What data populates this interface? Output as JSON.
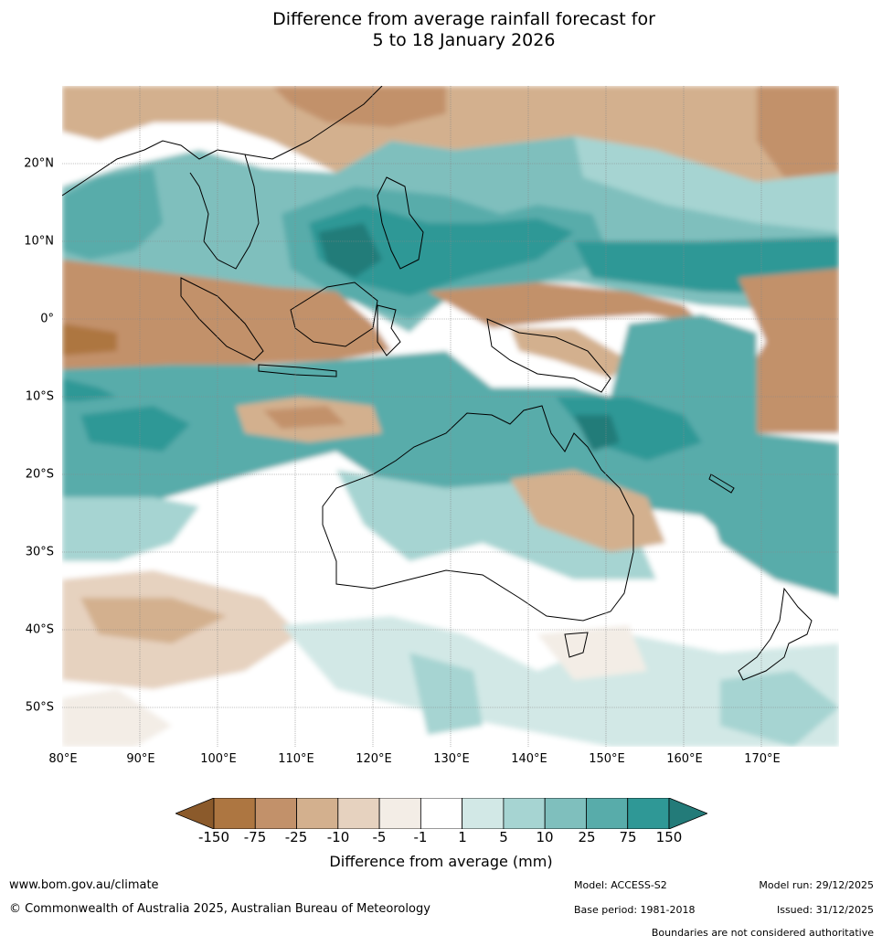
{
  "title": {
    "line1": "Difference from average rainfall forecast for",
    "line2": "5 to 18 January 2026"
  },
  "map": {
    "lat_labels": [
      "20°N",
      "10°N",
      "0°",
      "10°S",
      "20°S",
      "30°S",
      "40°S",
      "50°S"
    ],
    "lon_labels": [
      "80°E",
      "90°E",
      "100°E",
      "110°E",
      "120°E",
      "130°E",
      "140°E",
      "150°E",
      "160°E",
      "170°E"
    ],
    "lon_range": [
      80,
      180
    ],
    "lat_range": [
      -55,
      30
    ]
  },
  "legend": {
    "title": "Difference from average (mm)",
    "tick_labels": [
      "-150",
      "-75",
      "-25",
      "-10",
      "-5",
      "-1",
      "1",
      "5",
      "10",
      "25",
      "75",
      "150"
    ],
    "colors": [
      "#8b5a2b",
      "#ad7641",
      "#c2916a",
      "#d3b08e",
      "#e6d2bf",
      "#f3ede6",
      "#ffffff",
      "#d2e8e6",
      "#a6d4d2",
      "#7fbfbd",
      "#58acaa",
      "#2f9896",
      "#237b79"
    ]
  },
  "footer": {
    "website": "www.bom.gov.au/climate",
    "copyright": "© Commonwealth of Australia 2025, Australian Bureau of Meteorology",
    "model": "Model: ACCESS-S2",
    "base_period": "Base period: 1981-2018",
    "model_run": "Model run: 29/12/2025",
    "issued": "Issued: 31/12/2025",
    "boundaries_note": "Boundaries are not considered authoritative"
  }
}
